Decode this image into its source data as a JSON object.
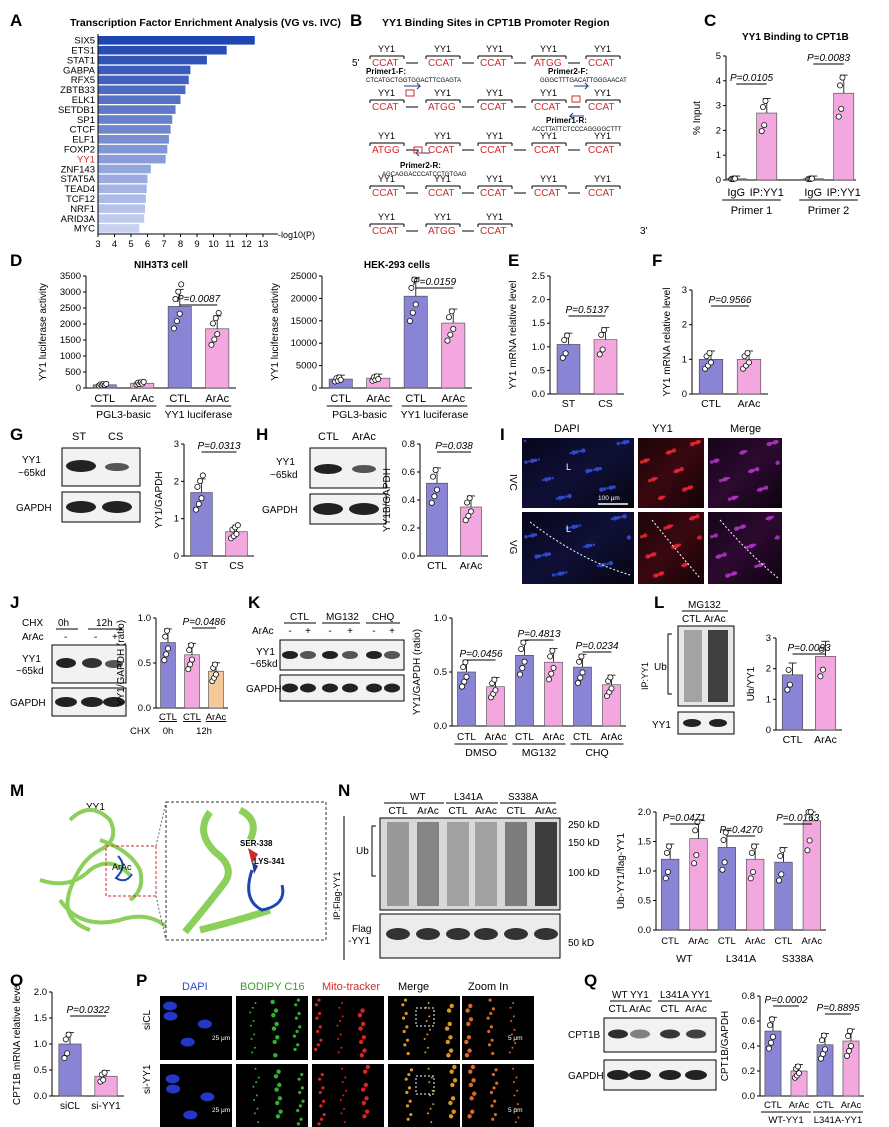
{
  "colors": {
    "navy": "#1f3b8c",
    "blue": "#8a84d4",
    "pink": "#f2a7df",
    "peach": "#f5c89a",
    "red": "#d22a2a",
    "green": "#8ccf5b"
  },
  "panelA": {
    "letter": "A",
    "title": "Transcription Factor Enrichment Analysis (VG vs. IVC)",
    "xlabel": "-log10(P)",
    "ticks": [
      "3",
      "4",
      "5",
      "6",
      "7",
      "8",
      "9",
      "10",
      "11",
      "12",
      "13"
    ],
    "factors": [
      "SIX5",
      "ETS1",
      "STAT1",
      "GABPA",
      "RFX5",
      "ZBTB33",
      "ELK1",
      "SETDB1",
      "SP1",
      "CTCF",
      "ELF1",
      "FOXP2",
      "YY1",
      "ZNF143",
      "STAT5A",
      "TEAD4",
      "TCF12",
      "NRF1",
      "ARID3A",
      "MYC"
    ]
  },
  "chart_data": {
    "type": "bar",
    "orientation": "horizontal",
    "categories": [
      "SIX5",
      "ETS1",
      "STAT1",
      "GABPA",
      "RFX5",
      "ZBTB33",
      "ELK1",
      "SETDB1",
      "SP1",
      "CTCF",
      "ELF1",
      "FOXP2",
      "YY1",
      "ZNF143",
      "STAT5A",
      "TEAD4",
      "TCF12",
      "NRF1",
      "ARID3A",
      "MYC"
    ],
    "values": [
      12.5,
      10.8,
      9.6,
      8.6,
      8.5,
      8.3,
      8.0,
      7.7,
      7.5,
      7.4,
      7.3,
      7.2,
      7.1,
      6.2,
      6.0,
      5.95,
      5.9,
      5.85,
      5.8,
      5.5
    ],
    "title": "Transcription Factor Enrichment Analysis (VG vs. IVC)",
    "xlabel": "-log10(P)",
    "xlim": [
      3,
      13
    ]
  },
  "panelB": {
    "letter": "B",
    "title": "YY1 Binding Sites in CPT1B Promoter Region",
    "five": "5'",
    "three": "3'",
    "yy1": "YY1",
    "ccat": "CCAT",
    "atgg": "ATGG",
    "primer1f": "Primer1-F:",
    "primer1f_seq": "CTCATGCTGGTGGACTTCGAGTA",
    "primer2f": "Primer2-F:",
    "primer2f_seq": "GGGCTTTGACATTGGGAACAT",
    "primer1r": "Primer1-R:",
    "primer1r_seq": "ACCTTATTCTCCCAGGGGCTTT",
    "primer2r": "Primer2-R:",
    "primer2r_seq": "AGCAGGACCCATCCTGTGAG",
    "rows": [
      [
        "CCAT",
        "CCAT",
        "CCAT",
        "ATGG",
        "CCAT"
      ],
      [
        "CCAT",
        "ATGG",
        "CCAT",
        "CCAT",
        "CCAT"
      ],
      [
        "ATGG",
        "CCAT",
        "CCAT",
        "CCAT",
        "CCAT"
      ],
      [
        "CCAT",
        "CCAT",
        "CCAT",
        "CCAT",
        "CCAT"
      ],
      [
        "CCAT",
        "ATGG",
        "CCAT"
      ]
    ]
  },
  "panelC": {
    "letter": "C",
    "title": "YY1 Binding to CPT1B",
    "ylabel": "% Input",
    "yticks": [
      "0",
      "1",
      "2",
      "3",
      "4",
      "5"
    ],
    "p1": "P=0.0105",
    "p2": "P=0.0083",
    "g1": "IgG",
    "g2": "IP:YY1",
    "prim1": "Primer 1",
    "prim2": "Primer 2",
    "values": [
      0.05,
      2.7,
      0.05,
      3.5
    ]
  },
  "panelD": {
    "letter": "D",
    "left": {
      "title": "NIH3T3  cell",
      "ylabel": "YY1 luciferase activity",
      "yticks": [
        "0",
        "500",
        "1000",
        "1500",
        "2000",
        "2500",
        "3000",
        "3500"
      ],
      "p": "P=0.0087",
      "values": [
        100,
        150,
        2550,
        1850
      ]
    },
    "right": {
      "title": "HEK-293 cells",
      "ylabel": "YY1 luciferase activity",
      "yticks": [
        "0",
        "5000",
        "10000",
        "15000",
        "20000",
        "25000"
      ],
      "p": "P=0.0159",
      "values": [
        2000,
        2200,
        20500,
        14500
      ]
    },
    "ctl": "CTL",
    "arac": "ArAc",
    "grp1": "PGL3-basic",
    "grp2": "YY1 luciferase"
  },
  "panelE": {
    "letter": "E",
    "ylabel": "YY1 mRNA relative level",
    "yticks": [
      "0.0",
      "0.5",
      "1.0",
      "1.5",
      "2.0",
      "2.5"
    ],
    "p": "P=0.5137",
    "labels": [
      "ST",
      "CS"
    ],
    "values": [
      1.05,
      1.15
    ]
  },
  "panelF": {
    "letter": "F",
    "ylabel": "YY1 mRNA relative level",
    "yticks": [
      "0",
      "1",
      "2",
      "3"
    ],
    "p": "P=0.9566",
    "labels": [
      "CTL",
      "ArAc"
    ],
    "values": [
      1.0,
      1.0
    ]
  },
  "panelG": {
    "letter": "G",
    "lanes": [
      "ST",
      "CS"
    ],
    "band1": "YY1",
    "band1b": "~65kd",
    "band2": "GAPDH",
    "ylabel": "YY1/GAPDH",
    "yticks": [
      "0",
      "1",
      "2",
      "3"
    ],
    "p": "P=0.0313",
    "labels": [
      "ST",
      "CS"
    ],
    "values": [
      1.7,
      0.65
    ]
  },
  "panelH": {
    "letter": "H",
    "lanes": [
      "CTL",
      "ArAc"
    ],
    "band1": "YY1",
    "band1b": "~65kd",
    "band2": "GAPDH",
    "ylabel": "YY1B/GAPDH",
    "yticks": [
      "0.0",
      "0.2",
      "0.4",
      "0.6",
      "0.8"
    ],
    "p": "P=0.038",
    "labels": [
      "CTL",
      "ArAc"
    ],
    "values": [
      0.52,
      0.35
    ]
  },
  "panelI": {
    "letter": "I",
    "cols": [
      "DAPI",
      "YY1",
      "Merge"
    ],
    "rows": [
      "IVC",
      "VG"
    ],
    "L": "L",
    "scale": "100 μm"
  },
  "panelJ": {
    "letter": "J",
    "chx": "CHX",
    "t0": "0h",
    "t12": "12h",
    "arac": "ArAc",
    "minus": "-",
    "plus": "+",
    "band1": "YY1",
    "band1b": "~65kd",
    "band2": "GAPDH",
    "ylabel": "YY1/GAPDH (ratio)",
    "yticks": [
      "0.0",
      "0.5",
      "1.0"
    ],
    "p": "P=0.0486",
    "labels": [
      "CTL",
      "CTL",
      "ArAc"
    ],
    "chxlab": "CHX",
    "sub0": "0h",
    "sub12": "12h",
    "values": [
      0.8,
      0.65,
      0.45
    ]
  },
  "panelK": {
    "letter": "K",
    "groups": [
      "CTL",
      "MG132",
      "CHQ"
    ],
    "arac": "ArAc",
    "minus": "-",
    "plus": "+",
    "band1": "YY1",
    "band1b": "~65kd",
    "band2": "GAPDH",
    "ylabel": "YY1/GAPDH (ratio)",
    "yticks": [
      "0.0",
      "0.5",
      "1.0"
    ],
    "p1": "P=0.0456",
    "p2": "P=0.4813",
    "p3": "P=0.0234",
    "labels": [
      "CTL",
      "ArAc",
      "CTL",
      "ArAc",
      "CTL",
      "ArAc"
    ],
    "grps": [
      "DMSO",
      "MG132",
      "CHQ"
    ],
    "values": [
      0.55,
      0.4,
      0.72,
      0.65,
      0.6,
      0.42
    ]
  },
  "panelL": {
    "letter": "L",
    "mg": "MG132",
    "lanes": [
      "CTL",
      "ArAc"
    ],
    "ub": "Ub",
    "yy1": "YY1",
    "ip": "IP:YY1",
    "ylabel": "Ub/YY1",
    "yticks": [
      "0",
      "1",
      "2",
      "3"
    ],
    "p": "P=0.0093",
    "labels": [
      "CTL",
      "ArAc"
    ],
    "values": [
      1.8,
      2.4
    ]
  },
  "panelM": {
    "letter": "M",
    "yy1": "YY1",
    "arac": "ArAc",
    "ser": "SER-338",
    "lys": "LYS-341"
  },
  "panelN": {
    "letter": "N",
    "groups": [
      "WT",
      "L341A",
      "S338A"
    ],
    "lanes": [
      "CTL",
      "ArAc",
      "CTL",
      "ArAc",
      "CTL",
      "ArAc"
    ],
    "mw": [
      "250 kD",
      "150 kD",
      "100 kD",
      "50 kD"
    ],
    "ub": "Ub",
    "flag": "Flag",
    "flag2": "-YY1",
    "ip": "IP:Flag-YY1",
    "ylabel": "Ub-YY1/flag-YY1",
    "yticks": [
      "0.0",
      "0.5",
      "1.0",
      "1.5",
      "2.0"
    ],
    "p1": "P=0.0471",
    "p2": "P=0.4270",
    "p3": "P=0.0163",
    "labels": [
      "CTL",
      "ArAc",
      "CTL",
      "ArAc",
      "CTL",
      "ArAc"
    ],
    "grps": [
      "WT",
      "L341A",
      "S338A"
    ],
    "values": [
      1.2,
      1.55,
      1.4,
      1.2,
      1.15,
      1.85
    ]
  },
  "panelO": {
    "letter": "O",
    "ylabel": "CPT1B mRNA relative level",
    "yticks": [
      "0.0",
      "0.5",
      "1.0",
      "1.5",
      "2.0"
    ],
    "p": "P=0.0322",
    "labels": [
      "siCL",
      "si-YY1"
    ],
    "values": [
      1.0,
      0.38
    ]
  },
  "panelP": {
    "letter": "P",
    "cols": [
      "DAPI",
      "BODIPY C16",
      "Mito-tracker",
      "Merge",
      "Zoom In"
    ],
    "rows": [
      "siCL",
      "si-YY1"
    ],
    "scale": "25 μm",
    "scale2": "5 μm"
  },
  "panelQ": {
    "letter": "Q",
    "g1": "WT YY1",
    "g2": "L341A YY1",
    "lanes": [
      "CTL",
      "ArAc",
      "CTL",
      "ArAc"
    ],
    "band1": "CPT1B",
    "band2": "GAPDH",
    "ylabel": "CPT1B/GAPDH",
    "yticks": [
      "0.0",
      "0.2",
      "0.4",
      "0.6",
      "0.8"
    ],
    "p1": "P=0.0002",
    "p2": "P=0.8895",
    "labels": [
      "CTL",
      "ArAc",
      "CTL",
      "ArAc"
    ],
    "grps": [
      "WT-YY1",
      "L341A-YY1"
    ],
    "values": [
      0.52,
      0.2,
      0.41,
      0.44
    ]
  }
}
